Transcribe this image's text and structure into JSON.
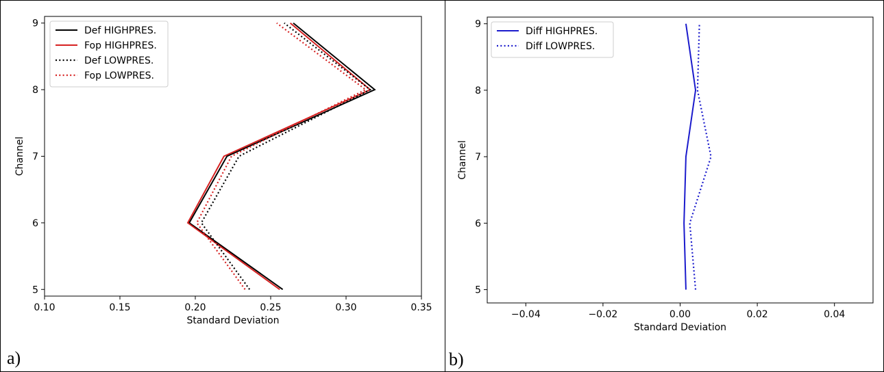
{
  "figure": {
    "panels": [
      {
        "tag": "a)",
        "chart_data": {
          "type": "line",
          "title": "",
          "xlabel": "Standard Deviation",
          "ylabel": "Channel",
          "xlim": [
            0.1,
            0.35
          ],
          "ylim": [
            4.9,
            9.1
          ],
          "xticks": [
            0.1,
            0.15,
            0.2,
            0.25,
            0.3,
            0.35
          ],
          "xtick_labels": [
            "0.10",
            "0.15",
            "0.20",
            "0.25",
            "0.30",
            "0.35"
          ],
          "yticks": [
            5,
            6,
            7,
            8,
            9
          ],
          "ytick_labels": [
            "5",
            "6",
            "7",
            "8",
            "9"
          ],
          "grid": false,
          "legend_position": "top-left",
          "series": [
            {
              "name": "Def HIGHPRES.",
              "color": "#000000",
              "style": "solid",
              "points": [
                [
                  0.258,
                  5
                ],
                [
                  0.196,
                  6
                ],
                [
                  0.221,
                  7
                ],
                [
                  0.319,
                  8
                ],
                [
                  0.265,
                  9
                ]
              ]
            },
            {
              "name": "Fop HIGHPRES.",
              "color": "#d62020",
              "style": "solid",
              "points": [
                [
                  0.256,
                  5
                ],
                [
                  0.195,
                  6
                ],
                [
                  0.219,
                  7
                ],
                [
                  0.316,
                  8
                ],
                [
                  0.263,
                  9
                ]
              ]
            },
            {
              "name": "Def LOWPRES.",
              "color": "#000000",
              "style": "dotted",
              "points": [
                [
                  0.236,
                  5
                ],
                [
                  0.204,
                  6
                ],
                [
                  0.229,
                  7
                ],
                [
                  0.316,
                  8
                ],
                [
                  0.259,
                  9
                ]
              ]
            },
            {
              "name": "Fop LOWPRES.",
              "color": "#d62020",
              "style": "dotted",
              "points": [
                [
                  0.233,
                  5
                ],
                [
                  0.201,
                  6
                ],
                [
                  0.224,
                  7
                ],
                [
                  0.313,
                  8
                ],
                [
                  0.254,
                  9
                ]
              ]
            }
          ]
        }
      },
      {
        "tag": "b)",
        "chart_data": {
          "type": "line",
          "title": "",
          "xlabel": "Standard Deviation",
          "ylabel": "Channel",
          "xlim": [
            -0.05,
            0.05
          ],
          "ylim": [
            4.8,
            9.1
          ],
          "xticks": [
            -0.04,
            -0.02,
            0.0,
            0.02,
            0.04
          ],
          "xtick_labels": [
            "−0.04",
            "−0.02",
            "0.00",
            "0.02",
            "0.04"
          ],
          "yticks": [
            5,
            6,
            7,
            8,
            9
          ],
          "ytick_labels": [
            "5",
            "6",
            "7",
            "8",
            "9"
          ],
          "grid": false,
          "legend_position": "top-left",
          "series": [
            {
              "name": "Diff HIGHPRES.",
              "color": "#1a1acc",
              "style": "solid",
              "points": [
                [
                  0.0015,
                  5
                ],
                [
                  0.001,
                  6
                ],
                [
                  0.0015,
                  7
                ],
                [
                  0.004,
                  8
                ],
                [
                  0.0015,
                  9
                ]
              ]
            },
            {
              "name": "Diff LOWPRES.",
              "color": "#1a1acc",
              "style": "dotted",
              "points": [
                [
                  0.004,
                  5
                ],
                [
                  0.0025,
                  6
                ],
                [
                  0.008,
                  7
                ],
                [
                  0.0045,
                  8
                ],
                [
                  0.005,
                  9
                ]
              ]
            }
          ]
        }
      }
    ]
  }
}
